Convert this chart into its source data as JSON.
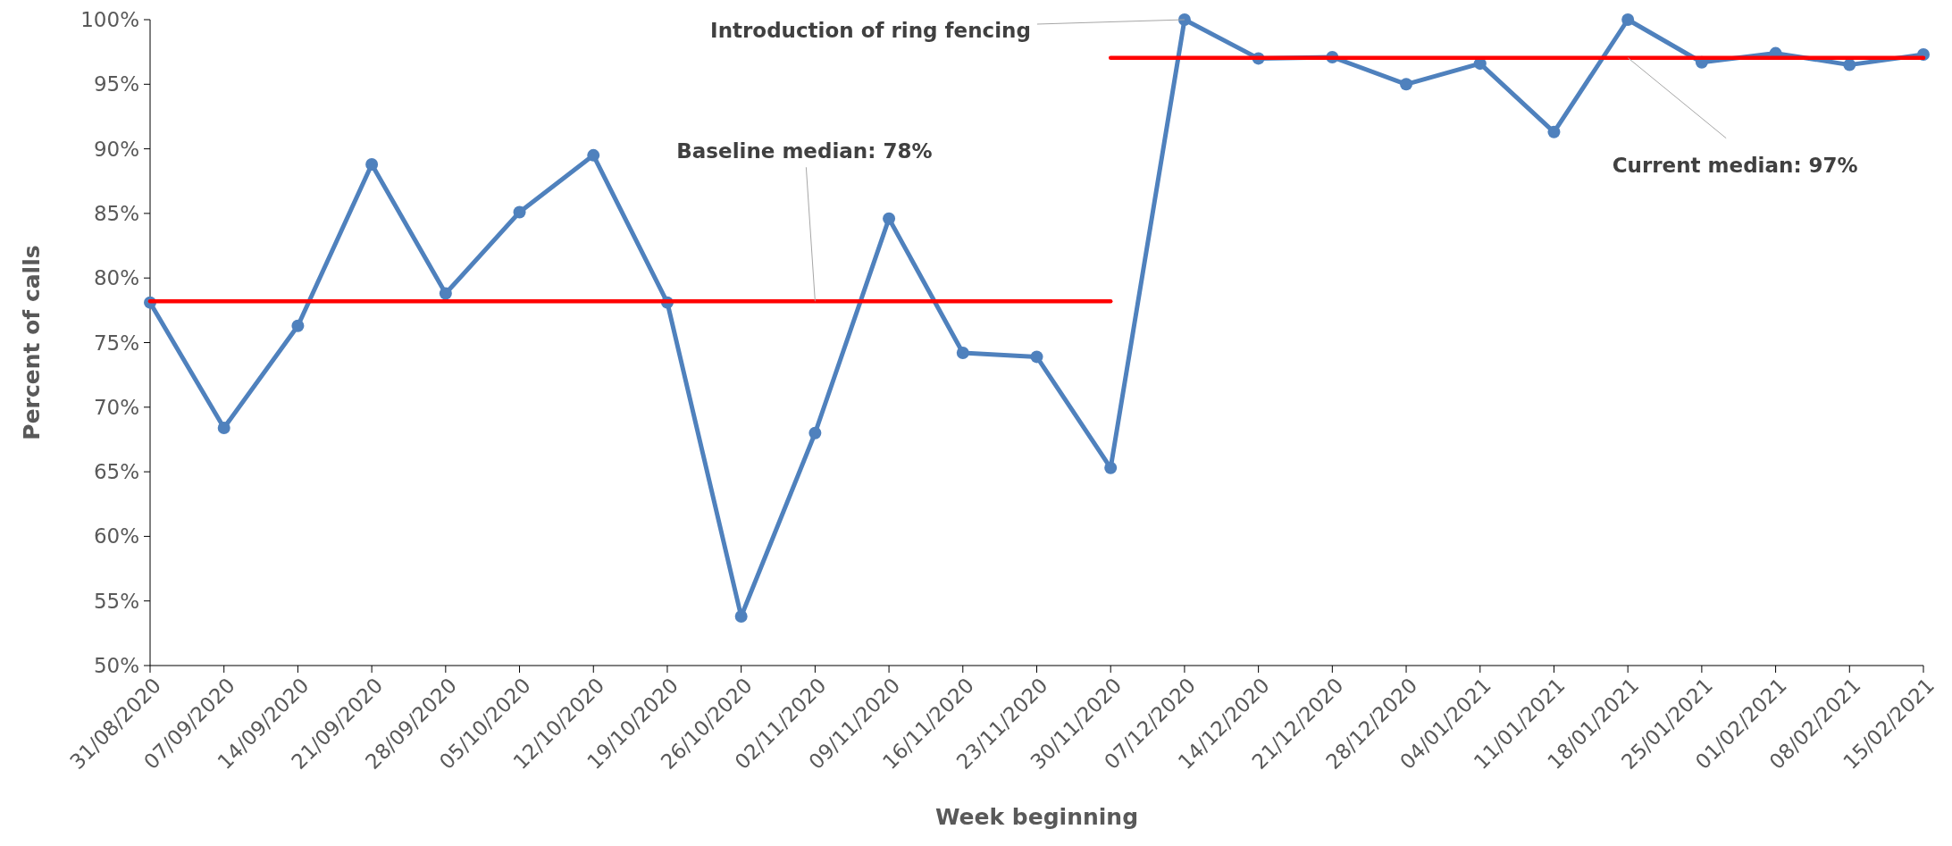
{
  "chart_data": {
    "type": "line",
    "xlabel": "Week beginning",
    "ylabel": "Percent of calls",
    "categories": [
      "31/08/2020",
      "07/09/2020",
      "14/09/2020",
      "21/09/2020",
      "28/09/2020",
      "05/10/2020",
      "12/10/2020",
      "19/10/2020",
      "26/10/2020",
      "02/11/2020",
      "09/11/2020",
      "16/11/2020",
      "23/11/2020",
      "30/11/2020",
      "07/12/2020",
      "14/12/2020",
      "21/12/2020",
      "28/12/2020",
      "04/01/2021",
      "11/01/2021",
      "18/01/2021",
      "25/01/2021",
      "01/02/2021",
      "08/02/2021",
      "15/02/2021"
    ],
    "series": [
      {
        "color": "#4f81bd",
        "marker": "circle",
        "values": [
          78.1,
          68.4,
          76.3,
          88.8,
          78.8,
          85.1,
          89.5,
          78.1,
          53.8,
          68.0,
          84.6,
          74.2,
          73.9,
          65.3,
          100,
          97.0,
          97.1,
          95.0,
          96.6,
          91.3,
          100,
          96.7,
          97.4,
          96.5,
          97.3
        ]
      },
      {
        "color": "#ff0000",
        "marker": "none",
        "values": [
          78.2,
          78.2,
          78.2,
          78.2,
          78.2,
          78.2,
          78.2,
          78.2,
          78.2,
          78.2,
          78.2,
          78.2,
          78.2,
          78.2,
          null,
          null,
          null,
          null,
          null,
          null,
          null,
          null,
          null,
          null,
          null
        ]
      },
      {
        "color": "#ff0000",
        "marker": "none",
        "values": [
          null,
          null,
          null,
          null,
          null,
          null,
          null,
          null,
          null,
          null,
          null,
          null,
          null,
          97.05,
          97.05,
          97.05,
          97.05,
          97.05,
          97.05,
          97.05,
          97.05,
          97.05,
          97.05,
          97.05,
          97.05
        ]
      }
    ],
    "ylim": [
      50,
      100
    ],
    "yticks": [
      {
        "value": 50,
        "label": "50%"
      },
      {
        "value": 55,
        "label": "55%"
      },
      {
        "value": 60,
        "label": "60%"
      },
      {
        "value": 65,
        "label": "65%"
      },
      {
        "value": 70,
        "label": "70%"
      },
      {
        "value": 75,
        "label": "75%"
      },
      {
        "value": 80,
        "label": "80%"
      },
      {
        "value": 85,
        "label": "85%"
      },
      {
        "value": 90,
        "label": "90%"
      },
      {
        "value": 95,
        "label": "95%"
      },
      {
        "value": 100,
        "label": "100%"
      }
    ],
    "annotations": [
      {
        "text": "Introduction of ring fencing",
        "x": "07/12/2020",
        "y": 100
      },
      {
        "text": "Baseline median: 78%",
        "x": "02/11/2020",
        "y": 78.2
      },
      {
        "text": "Current median: 97%",
        "x": "18/01/2021",
        "y": 97.05
      }
    ],
    "grid": false
  }
}
